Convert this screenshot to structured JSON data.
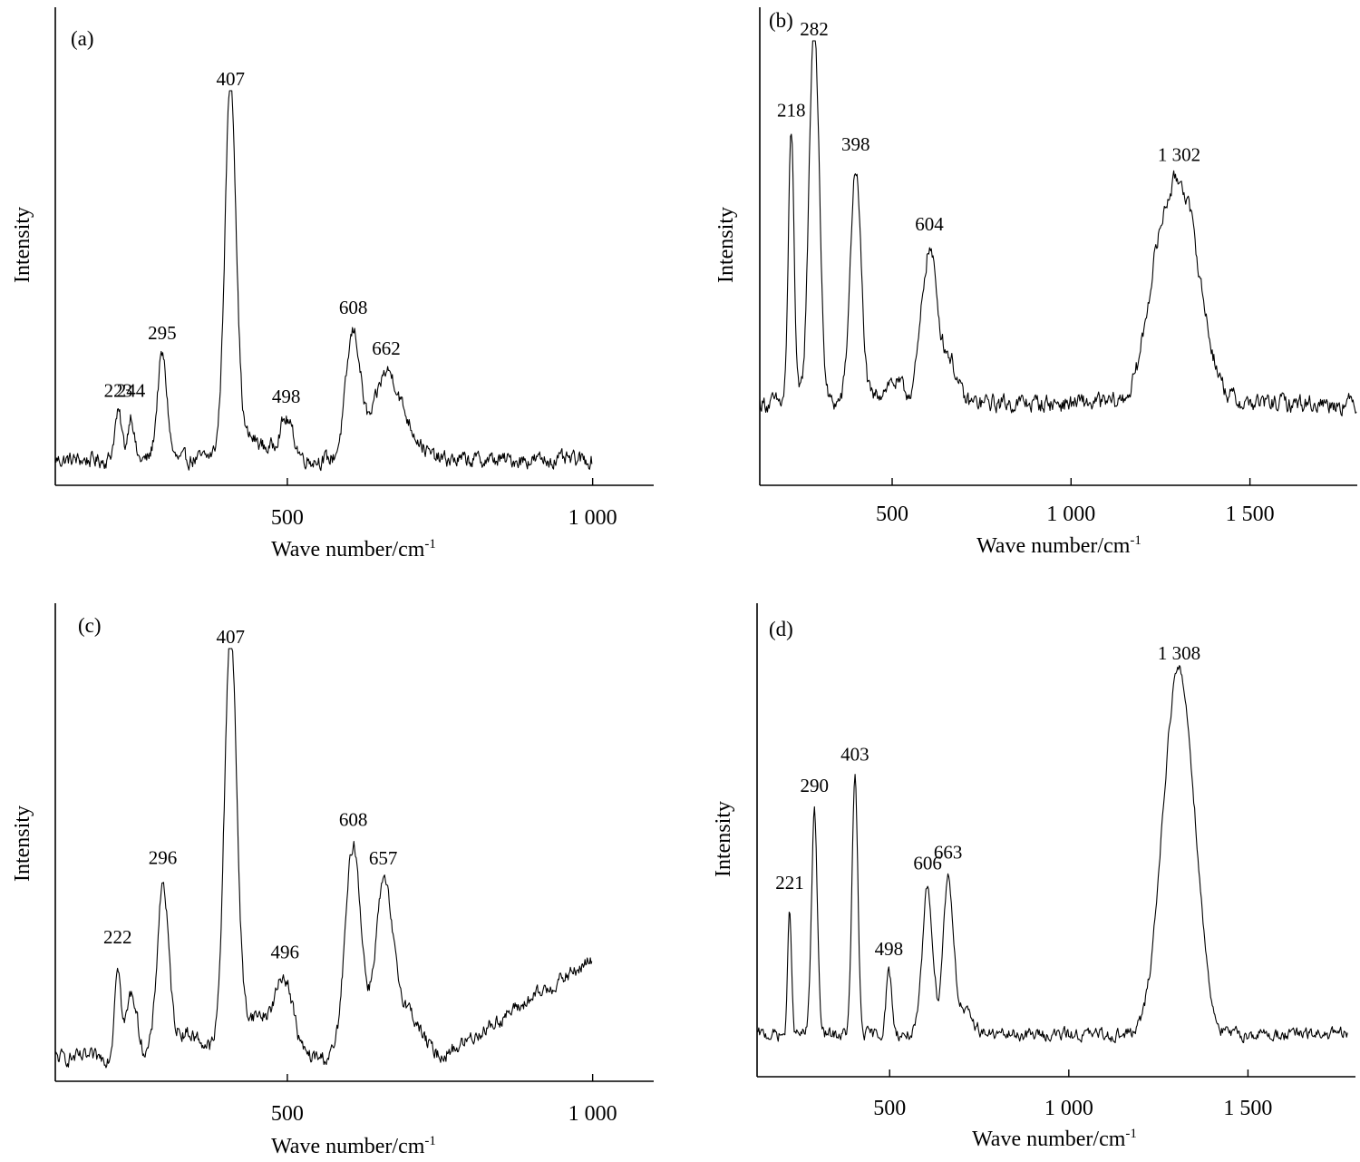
{
  "chart_data": [
    {
      "type": "line",
      "panel_label": "(a)",
      "xlabel": "Wave number/cm",
      "xlabel_sup": "-1",
      "ylabel": "Intensity",
      "xlim": [
        120,
        1100
      ],
      "ylim": [
        0,
        100
      ],
      "xticks": [
        500,
        1000
      ],
      "xtick_labels": [
        "500",
        "1 000"
      ],
      "x_end": 1000,
      "baseline": 4,
      "series": [
        {
          "peaks": [
            [
              223,
              12,
              6
            ],
            [
              244,
              12,
              5
            ],
            [
              295,
              27,
              8
            ],
            [
              407,
              95,
              9
            ],
            [
              498,
              10,
              12
            ],
            [
              608,
              33,
              12
            ],
            [
              662,
              22,
              20
            ],
            [
              700,
              6,
              20
            ],
            [
              430,
              6,
              30
            ]
          ],
          "noise": 1.5
        }
      ],
      "peak_labels": [
        {
          "x": 223,
          "text": "223"
        },
        {
          "x": 244,
          "text": "244"
        },
        {
          "x": 295,
          "text": "295"
        },
        {
          "x": 407,
          "text": "407"
        },
        {
          "x": 498,
          "text": "498"
        },
        {
          "x": 608,
          "text": "608"
        },
        {
          "x": 662,
          "text": "662"
        }
      ]
    },
    {
      "type": "line",
      "panel_label": "(b)",
      "xlabel": "Wave number/cm",
      "xlabel_sup": "-1",
      "ylabel": "Intensity",
      "xlim": [
        130,
        1800
      ],
      "ylim": [
        0,
        100
      ],
      "xticks": [
        500,
        1000,
        1500
      ],
      "xtick_labels": [
        "500",
        "1 000",
        "1 500"
      ],
      "x_end": 1800,
      "baseline": 15,
      "series": [
        {
          "peaks": [
            [
              218,
              63,
              8
            ],
            [
              282,
              90,
              14
            ],
            [
              398,
              55,
              15
            ],
            [
              604,
              36,
              22
            ],
            [
              660,
              10,
              20
            ],
            [
              1302,
              52,
              55
            ],
            [
              1230,
              10,
              30
            ],
            [
              500,
              5,
              30
            ]
          ],
          "noise": 1.6
        }
      ],
      "peak_labels": [
        {
          "x": 218,
          "text": "218"
        },
        {
          "x": 282,
          "text": "282"
        },
        {
          "x": 398,
          "text": "398"
        },
        {
          "x": 604,
          "text": "604"
        },
        {
          "x": 1302,
          "text": "1 302"
        }
      ]
    },
    {
      "type": "line",
      "panel_label": "(c)",
      "xlabel": "Wave number/cm",
      "xlabel_sup": "-1",
      "ylabel": "Intensity",
      "xlim": [
        120,
        1100
      ],
      "ylim": [
        0,
        100
      ],
      "xticks": [
        500,
        1000
      ],
      "xtick_labels": [
        "500",
        "1 000"
      ],
      "x_end": 1000,
      "baseline": 4,
      "baseline_rise": [
        750,
        1000,
        15,
        38
      ],
      "series": [
        {
          "peaks": [
            [
              222,
              22,
              5
            ],
            [
              245,
              15,
              9
            ],
            [
              296,
              38,
              9
            ],
            [
              407,
              97,
              10
            ],
            [
              496,
              16,
              14
            ],
            [
              608,
              50,
              13
            ],
            [
              657,
              36,
              14
            ],
            [
              690,
              12,
              25
            ],
            [
              450,
              10,
              30
            ],
            [
              330,
              6,
              30
            ]
          ],
          "noise": 1.3
        }
      ],
      "peak_labels": [
        {
          "x": 222,
          "text": "222"
        },
        {
          "x": 296,
          "text": "296"
        },
        {
          "x": 407,
          "text": "407"
        },
        {
          "x": 496,
          "text": "496"
        },
        {
          "x": 608,
          "text": "608"
        },
        {
          "x": 657,
          "text": "657"
        }
      ]
    },
    {
      "type": "line",
      "panel_label": "(d)",
      "xlabel": "Wave number/cm",
      "xlabel_sup": "-1",
      "ylabel": "Intensity",
      "xlim": [
        130,
        1800
      ],
      "ylim": [
        0,
        100
      ],
      "xticks": [
        500,
        1000,
        1500
      ],
      "xtick_labels": [
        "500",
        "1 000",
        "1 500"
      ],
      "x_end": 1780,
      "baseline": 5,
      "series": [
        {
          "peaks": [
            [
              221,
              33,
              5
            ],
            [
              290,
              58,
              8
            ],
            [
              403,
              66,
              8
            ],
            [
              498,
              16,
              8
            ],
            [
              606,
              38,
              14
            ],
            [
              663,
              38,
              14
            ],
            [
              1308,
              90,
              40
            ],
            [
              1260,
              10,
              30
            ],
            [
              1360,
              8,
              25
            ],
            [
              700,
              6,
              30
            ]
          ],
          "noise": 1.2
        }
      ],
      "peak_labels": [
        {
          "x": 221,
          "text": "221"
        },
        {
          "x": 290,
          "text": "290"
        },
        {
          "x": 403,
          "text": "403"
        },
        {
          "x": 498,
          "text": "498"
        },
        {
          "x": 606,
          "text": "606"
        },
        {
          "x": 663,
          "text": "663"
        },
        {
          "x": 1308,
          "text": "1 308"
        }
      ]
    }
  ]
}
